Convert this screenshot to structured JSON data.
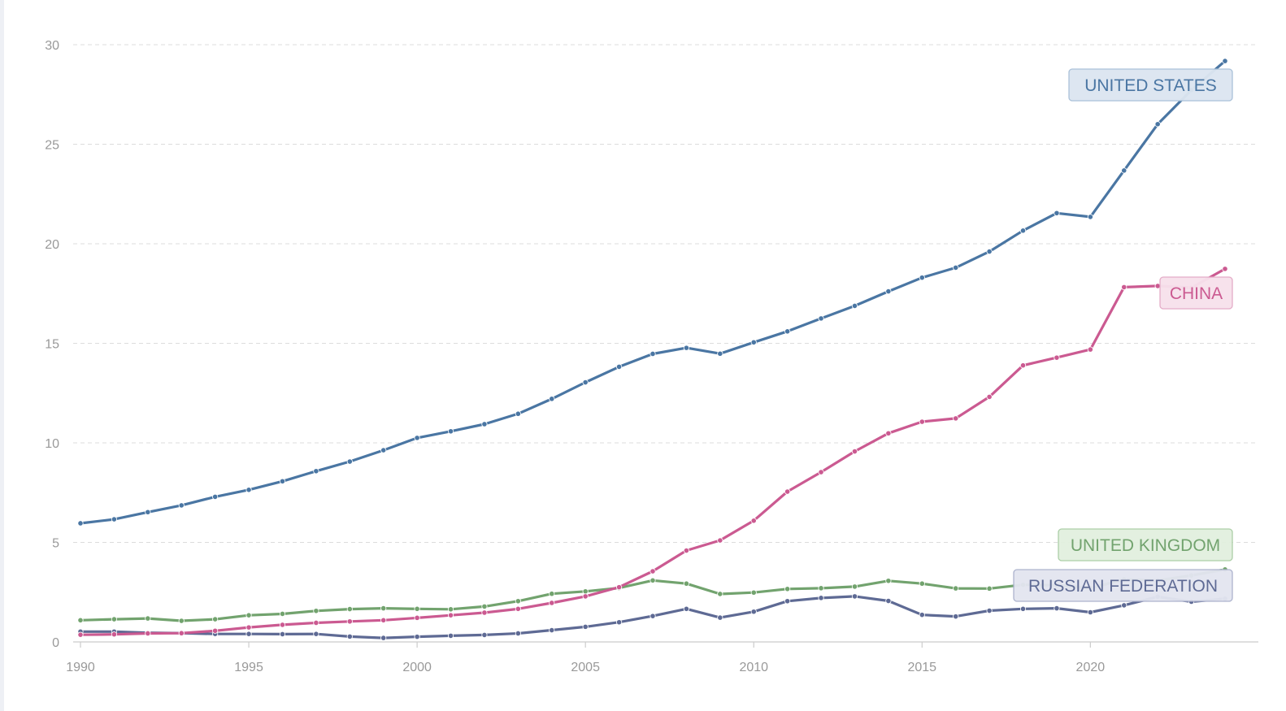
{
  "chart_data": {
    "type": "line",
    "title": "",
    "xlabel": "",
    "ylabel": "",
    "x": [
      1990,
      1991,
      1992,
      1993,
      1994,
      1995,
      1996,
      1997,
      1998,
      1999,
      2000,
      2001,
      2002,
      2003,
      2004,
      2005,
      2006,
      2007,
      2008,
      2009,
      2010,
      2011,
      2012,
      2013,
      2014,
      2015,
      2016,
      2017,
      2018,
      2019,
      2020,
      2021,
      2022,
      2023,
      2024
    ],
    "xticks": [
      1990,
      1995,
      2000,
      2005,
      2010,
      2015,
      2020
    ],
    "xtick_labels": [
      "1990",
      "1995",
      "2000",
      "2005",
      "2010",
      "2015",
      "2020"
    ],
    "ylim": [
      0,
      30
    ],
    "yticks": [
      0,
      5,
      10,
      15,
      20,
      25,
      30
    ],
    "ytick_labels": [
      "0",
      "5",
      "10",
      "15",
      "20",
      "25",
      "30"
    ],
    "grid": true,
    "series": [
      {
        "name": "UNITED STATES",
        "color": "#4a76a3",
        "label_bg": "#dce6f1",
        "label_border": "#a7bfd8",
        "label_color": "#4a76a3",
        "values": [
          5.96,
          6.16,
          6.52,
          6.86,
          7.29,
          7.64,
          8.07,
          8.58,
          9.06,
          9.63,
          10.25,
          10.58,
          10.94,
          11.46,
          12.21,
          13.04,
          13.82,
          14.47,
          14.77,
          14.48,
          15.05,
          15.6,
          16.25,
          16.88,
          17.61,
          18.3,
          18.8,
          19.61,
          20.66,
          21.54,
          21.35,
          23.68,
          26.01,
          27.72,
          29.18
        ]
      },
      {
        "name": "CHINA",
        "color": "#cb5a91",
        "label_bg": "#f7e1ec",
        "label_border": "#e3a9c5",
        "label_color": "#cb5a91",
        "values": [
          0.36,
          0.38,
          0.43,
          0.44,
          0.56,
          0.73,
          0.86,
          0.96,
          1.03,
          1.09,
          1.21,
          1.34,
          1.47,
          1.66,
          1.96,
          2.29,
          2.75,
          3.55,
          4.59,
          5.1,
          6.09,
          7.55,
          8.53,
          9.57,
          10.48,
          11.06,
          11.23,
          12.31,
          13.89,
          14.28,
          14.69,
          17.82,
          17.88,
          17.79,
          18.74
        ]
      },
      {
        "name": "UNITED KINGDOM",
        "color": "#72a36e",
        "label_bg": "#e2f0df",
        "label_border": "#a9cda4",
        "label_color": "#72a36e",
        "values": [
          1.09,
          1.14,
          1.18,
          1.06,
          1.14,
          1.34,
          1.41,
          1.56,
          1.65,
          1.69,
          1.66,
          1.64,
          1.78,
          2.05,
          2.42,
          2.54,
          2.71,
          3.09,
          2.93,
          2.41,
          2.48,
          2.66,
          2.7,
          2.78,
          3.07,
          2.93,
          2.69,
          2.68,
          2.87,
          2.85,
          2.7,
          3.14,
          3.09,
          3.34,
          3.64
        ]
      },
      {
        "name": "RUSSIAN FEDERATION",
        "color": "#5e6a94",
        "label_bg": "#e3e5f0",
        "label_border": "#aab0cc",
        "label_color": "#5e6a94",
        "values": [
          0.52,
          0.52,
          0.46,
          0.44,
          0.4,
          0.4,
          0.39,
          0.4,
          0.27,
          0.2,
          0.26,
          0.31,
          0.35,
          0.43,
          0.59,
          0.76,
          0.99,
          1.3,
          1.66,
          1.22,
          1.52,
          2.05,
          2.21,
          2.29,
          2.06,
          1.36,
          1.28,
          1.57,
          1.66,
          1.69,
          1.49,
          1.84,
          2.27,
          2.02,
          2.17
        ]
      }
    ]
  }
}
